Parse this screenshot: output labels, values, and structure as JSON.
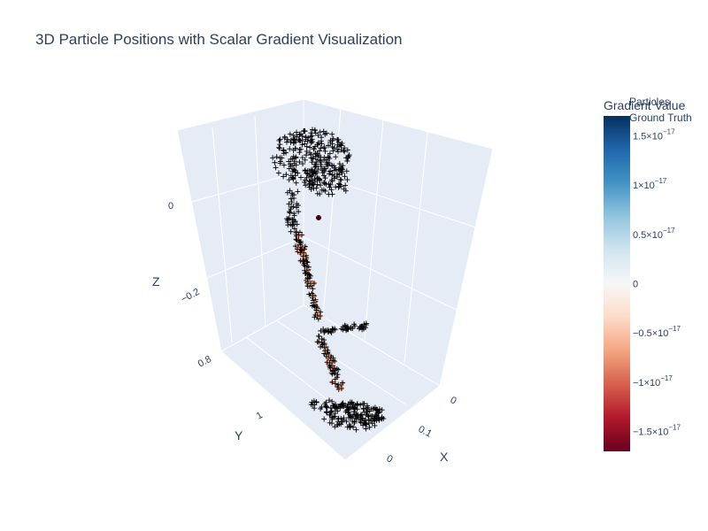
{
  "chart_data": {
    "type": "scatter3d",
    "title": "3D Particle Positions with Scalar Gradient Visualization",
    "axes": {
      "x": {
        "label": "X",
        "ticks": [
          "0",
          "0.1",
          "0"
        ]
      },
      "y": {
        "label": "Y",
        "ticks": [
          "0.8",
          "1"
        ]
      },
      "z": {
        "label": "Z",
        "ticks": [
          "0",
          "−0.2"
        ]
      }
    },
    "colorbar": {
      "title": "Gradient Value",
      "colorscale": "RdBu",
      "colors": [
        "#67001f",
        "#b2182b",
        "#d6604d",
        "#f4a582",
        "#fddbc7",
        "#f7f7f7",
        "#d1e5f0",
        "#92c5de",
        "#4393c3",
        "#2166ac",
        "#053061"
      ],
      "range": [
        -1.7e-17,
        1.7e-17
      ],
      "ticks": [
        {
          "value": 1.5e-17,
          "mantissa": "1.5×10",
          "exp": "−17"
        },
        {
          "value": 1e-17,
          "mantissa": "1×10",
          "exp": "−17"
        },
        {
          "value": 5e-18,
          "mantissa": "0.5×10",
          "exp": "−17"
        },
        {
          "value": 0,
          "mantissa": "0",
          "exp": ""
        },
        {
          "value": -5e-18,
          "mantissa": "−0.5×10",
          "exp": "−17"
        },
        {
          "value": -1e-17,
          "mantissa": "−1×10",
          "exp": "−17"
        },
        {
          "value": -1.5e-17,
          "mantissa": "−1.5×10",
          "exp": "−17"
        }
      ]
    },
    "legend": {
      "placement": "top-right",
      "entries": [
        "Particles",
        "Ground Truth"
      ]
    },
    "series": [
      {
        "name": "Particles",
        "marker": "colored point",
        "point_count": 1
      },
      {
        "name": "Ground Truth",
        "marker": "cross",
        "color": "#000000"
      }
    ]
  }
}
